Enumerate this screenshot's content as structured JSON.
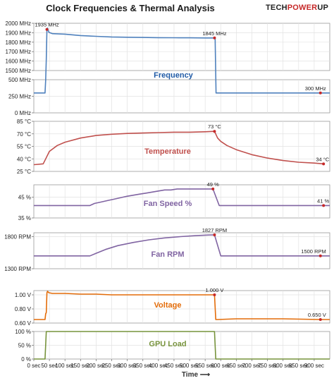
{
  "title": "Clock Frequencies & Thermal Analysis",
  "logo": {
    "part1": "TECH",
    "part2": "POWER",
    "part3": "UP"
  },
  "xlabel": "Time",
  "xlabel_arrow": "⟶",
  "x_ticks": [
    "0 sec",
    "50 sec",
    "100 sec",
    "150 sec",
    "200 sec",
    "250 sec",
    "300 sec",
    "350 sec",
    "400 sec",
    "450 sec",
    "500 sec",
    "550 sec",
    "600 sec",
    "650 sec",
    "700 sec",
    "750 sec",
    "800 sec",
    "850 sec",
    "900 sec"
  ],
  "chart_data": [
    {
      "type": "line",
      "label": "Frequency",
      "color": "#4f81bd",
      "xlim": [
        0,
        950
      ],
      "segments": [
        {
          "yticks": [
            "1500 MHz",
            "1600 MHz",
            "1700 MHz",
            "1800 MHz",
            "1900 MHz",
            "2000 MHz"
          ],
          "ylim": [
            1500,
            2000
          ]
        },
        {
          "yticks": [
            "0 MHz",
            "250 MHz",
            "500 MHz"
          ],
          "ylim": [
            0,
            500
          ]
        }
      ],
      "x": [
        0,
        25,
        36,
        38,
        40,
        42,
        44,
        48,
        60,
        100,
        150,
        200,
        250,
        300,
        350,
        400,
        450,
        500,
        550,
        580,
        582,
        585,
        590,
        950
      ],
      "y": [
        300,
        300,
        300,
        490,
        1620,
        1935,
        1950,
        1905,
        1890,
        1885,
        1870,
        1862,
        1855,
        1852,
        1850,
        1848,
        1847,
        1846,
        1845,
        1845,
        1845,
        300,
        300,
        300
      ],
      "annotations": [
        {
          "x": 42,
          "y": 1935,
          "text": "1935 MHz"
        },
        {
          "x": 580,
          "y": 1845,
          "text": "1845 MHz"
        },
        {
          "x": 920,
          "y": 300,
          "text": "300 MHz"
        }
      ]
    },
    {
      "type": "line",
      "label": "Temperature",
      "color": "#c0504d",
      "xlim": [
        0,
        950
      ],
      "yticks": [
        "25 °C",
        "40 °C",
        "55 °C",
        "70 °C",
        "85 °C"
      ],
      "ylim": [
        25,
        85
      ],
      "x": [
        0,
        30,
        38,
        50,
        75,
        100,
        150,
        200,
        250,
        300,
        350,
        400,
        450,
        500,
        550,
        580,
        590,
        600,
        620,
        650,
        700,
        750,
        800,
        850,
        900,
        930
      ],
      "y": [
        33,
        34,
        40,
        49,
        56,
        60,
        65,
        68,
        69.5,
        70.5,
        71,
        71.5,
        72,
        72,
        72.5,
        73,
        65,
        61,
        56,
        51,
        45,
        41,
        38,
        36,
        35,
        34
      ],
      "annotations": [
        {
          "x": 580,
          "y": 73,
          "text": "73 °C"
        },
        {
          "x": 930,
          "y": 34,
          "text": "34 °C"
        }
      ]
    },
    {
      "type": "line",
      "label": "Fan Speed %",
      "color": "#8064a2",
      "xlim": [
        0,
        950
      ],
      "yticks": [
        "35 %",
        "45 %"
      ],
      "ylim": [
        35,
        51
      ],
      "x": [
        0,
        180,
        195,
        210,
        225,
        240,
        255,
        270,
        285,
        300,
        320,
        340,
        360,
        380,
        400,
        420,
        440,
        460,
        560,
        575,
        595,
        605,
        950
      ],
      "y": [
        41,
        41,
        42,
        42.5,
        43,
        43.5,
        44,
        44.5,
        45,
        45.5,
        46,
        46.5,
        47,
        47.5,
        48,
        48.5,
        48.5,
        49,
        49,
        49,
        41,
        41,
        41
      ],
      "annotations": [
        {
          "x": 575,
          "y": 49,
          "text": "49 %"
        },
        {
          "x": 930,
          "y": 41,
          "text": "41 %"
        }
      ]
    },
    {
      "type": "line",
      "label": "Fan RPM",
      "color": "#8064a2",
      "xlim": [
        0,
        950
      ],
      "yticks": [
        "1300 RPM",
        "1800 RPM"
      ],
      "ylim": [
        1300,
        1860
      ],
      "x": [
        0,
        180,
        200,
        230,
        270,
        320,
        370,
        420,
        470,
        520,
        560,
        580,
        600,
        610,
        950
      ],
      "y": [
        1500,
        1500,
        1540,
        1600,
        1660,
        1710,
        1750,
        1780,
        1800,
        1815,
        1825,
        1827,
        1500,
        1500,
        1500
      ],
      "annotations": [
        {
          "x": 580,
          "y": 1827,
          "text": "1827 RPM"
        },
        {
          "x": 920,
          "y": 1500,
          "text": "1500 RPM"
        }
      ]
    },
    {
      "type": "line",
      "label": "Voltage",
      "color": "#e36c09",
      "xlim": [
        0,
        950
      ],
      "yticks": [
        "0.60 V",
        "0.80 V",
        "1.00 V"
      ],
      "ylim": [
        0.6,
        1.06
      ],
      "x": [
        0,
        36,
        38,
        40,
        42,
        44,
        48,
        60,
        100,
        150,
        200,
        250,
        300,
        350,
        400,
        450,
        500,
        550,
        580,
        584,
        590,
        650,
        700,
        800,
        920,
        950
      ],
      "y": [
        0.65,
        0.65,
        0.73,
        0.75,
        1.03,
        1.05,
        1.03,
        1.02,
        1.02,
        1.01,
        1.01,
        1.0,
        1.0,
        1.0,
        1.0,
        1.0,
        1.0,
        1.0,
        1.0,
        0.65,
        0.65,
        0.66,
        0.66,
        0.66,
        0.65,
        0.65
      ],
      "annotations": [
        {
          "x": 580,
          "y": 1.0,
          "text": "1.000 V"
        },
        {
          "x": 920,
          "y": 0.65,
          "text": "0.650 V"
        }
      ]
    },
    {
      "type": "line",
      "label": "GPU Load",
      "color": "#77933c",
      "xlim": [
        0,
        950
      ],
      "yticks": [
        "0 %",
        "50 %",
        "100 %"
      ],
      "ylim": [
        0,
        100
      ],
      "x": [
        0,
        36,
        40,
        580,
        584,
        950
      ],
      "y": [
        0,
        0,
        100,
        100,
        0,
        0
      ],
      "annotations": []
    }
  ]
}
